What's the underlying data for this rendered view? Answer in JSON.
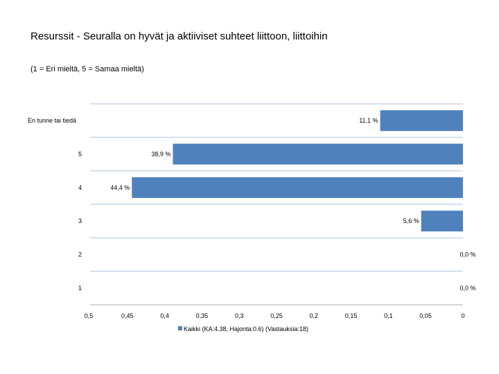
{
  "title": "Resurssit - Seuralla on hyvät ja aktiiviset suhteet liittoon, liittoihin",
  "subtitle": "(1 = Eri mieltä, 5 = Samaa mieltä)",
  "chart_data": {
    "type": "bar",
    "orientation": "horizontal",
    "x_axis_reversed": true,
    "categories": [
      "En tunne tai tiedä",
      "5",
      "4",
      "3",
      "2",
      "1"
    ],
    "values": [
      0.111,
      0.389,
      0.444,
      0.056,
      0.0,
      0.0
    ],
    "value_labels": [
      "11,1 %",
      "38,9 %",
      "44,4 %",
      "5,6 %",
      "0,0 %",
      "0,0 %"
    ],
    "xlim": [
      0.5,
      0
    ],
    "x_ticks": [
      0.5,
      0.45,
      0.4,
      0.35,
      0.3,
      0.25,
      0.2,
      0.15,
      0.1,
      0.05,
      0
    ],
    "x_tick_labels": [
      "0,5",
      "0,45",
      "0,4",
      "0,35",
      "0,3",
      "0,25",
      "0,2",
      "0,15",
      "0,1",
      "0,05",
      "0"
    ],
    "series": [
      {
        "name": "Kaikki (KA:4.38, Hajonta:0.6) (Vastauksia:18)",
        "color": "#4f81bd"
      }
    ],
    "grid": "horizontal",
    "gridline_color": "#c9d6e4",
    "legend_position": "bottom"
  }
}
